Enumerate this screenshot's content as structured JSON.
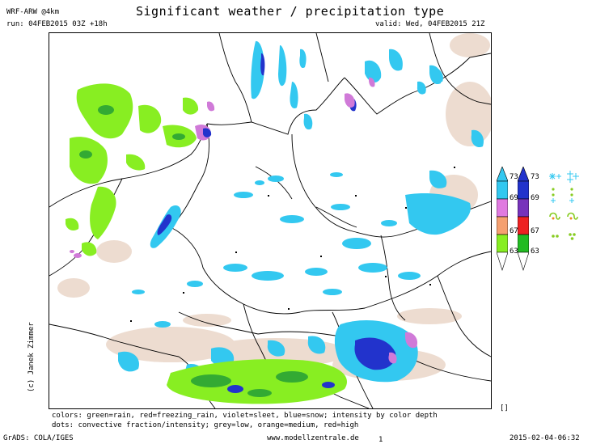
{
  "header": {
    "model": "WRF-ARW @4km",
    "title": "Significant weather / precipitation type",
    "run": "run: 04FEB2015 03Z +18h",
    "valid": "valid: Wed, 04FEB2015 21Z"
  },
  "credit": "(c) Janek Zimmer",
  "footer": {
    "colors_line": "colors: green=rain, red=freezing_rain, violet=sleet, blue=snow; intensity by color depth",
    "dots_line": "dots: convective fraction/intensity;  grey=low, orange=medium, red=high",
    "grads": "GrADS: COLA/IGES",
    "website": "www.modellzentrale.de",
    "page_num": "1",
    "timestamp": "2015-02-04-06:32",
    "bracket": "[]"
  },
  "legend": {
    "left_bar": [
      "73",
      "69",
      "67",
      "63"
    ],
    "right_bar": [
      "73",
      "69",
      "67",
      "63"
    ],
    "colors": {
      "left": [
        "#33c8f0",
        "#e07ae0",
        "#f5a070",
        "#88ee22",
        "#ffffff"
      ],
      "right": [
        "#2233cc",
        "#7733bb",
        "#ee2222",
        "#22bb22",
        "#ffffff"
      ]
    },
    "symbols": {
      "snow": "❄",
      "rain": "⁚",
      "freezing": "∾",
      "drizzle": "∴"
    }
  },
  "colors": {
    "rain_light": "#88ee22",
    "rain_dark": "#33aa33",
    "snow_light": "#33c8f0",
    "snow_dark": "#2233cc",
    "sleet": "#d07ad8",
    "dust": "#ead6c8",
    "border": "#000000"
  }
}
